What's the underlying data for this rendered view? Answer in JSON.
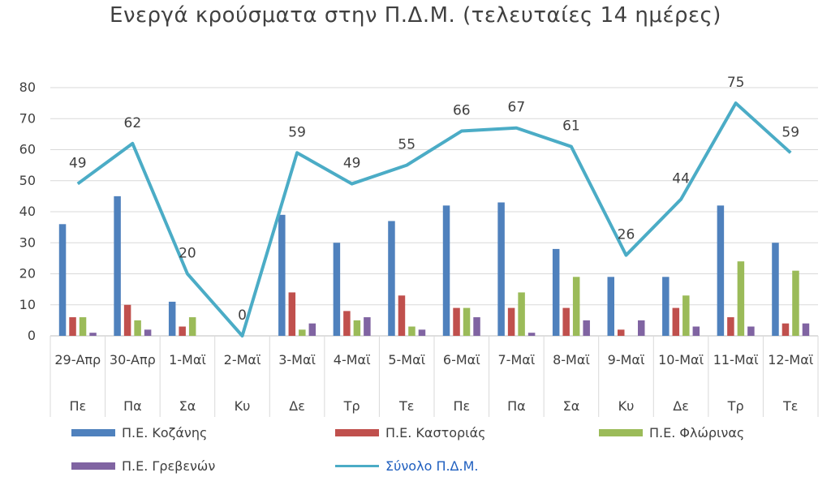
{
  "chart_data": {
    "type": "bar",
    "title": "Ενεργά κρούσματα στην Π.Δ.Μ. (τελευταίες 14 ημέρες)",
    "categories": [
      "29-Απρ",
      "30-Απρ",
      "1-Μαϊ",
      "2-Μαϊ",
      "3-Μαϊ",
      "4-Μαϊ",
      "5-Μαϊ",
      "6-Μαϊ",
      "7-Μαϊ",
      "8-Μαϊ",
      "9-Μαϊ",
      "10-Μαϊ",
      "11-Μαϊ",
      "12-Μαϊ"
    ],
    "weekdays": [
      "Πε",
      "Πα",
      "Σα",
      "Κυ",
      "Δε",
      "Τρ",
      "Τε",
      "Πε",
      "Πα",
      "Σα",
      "Κυ",
      "Δε",
      "Τρ",
      "Τε"
    ],
    "y_ticks": [
      "0",
      "10",
      "20",
      "30",
      "40",
      "50",
      "60",
      "70",
      "80"
    ],
    "ylim": [
      0,
      80
    ],
    "grid": true,
    "legend_position": "bottom",
    "series": [
      {
        "name": "Π.Ε. Κοζάνης",
        "type": "bar",
        "color": "#4f81bd",
        "values": [
          36,
          45,
          11,
          0,
          39,
          30,
          37,
          42,
          43,
          28,
          19,
          19,
          42,
          30
        ]
      },
      {
        "name": "Π.Ε. Καστοριάς",
        "type": "bar",
        "color": "#c0504d",
        "values": [
          6,
          10,
          3,
          0,
          14,
          8,
          13,
          9,
          9,
          9,
          2,
          9,
          6,
          4
        ]
      },
      {
        "name": "Π.Ε. Φλώρινας",
        "type": "bar",
        "color": "#9bbb59",
        "values": [
          6,
          5,
          6,
          0,
          2,
          5,
          3,
          9,
          14,
          19,
          0,
          13,
          24,
          21
        ]
      },
      {
        "name": "Π.Ε. Γρεβενών",
        "type": "bar",
        "color": "#8064a2",
        "values": [
          1,
          2,
          0,
          0,
          4,
          6,
          2,
          6,
          1,
          5,
          5,
          3,
          3,
          4
        ]
      },
      {
        "name": "Σύνολο Π.Δ.Μ.",
        "type": "line",
        "color": "#4bacc6",
        "values": [
          49,
          62,
          20,
          0,
          59,
          49,
          55,
          66,
          67,
          61,
          26,
          44,
          75,
          59
        ],
        "data_labels": [
          "49",
          "62",
          "20",
          "0",
          "59",
          "49",
          "55",
          "66",
          "67",
          "61",
          "26",
          "44",
          "75",
          "59"
        ]
      }
    ]
  }
}
